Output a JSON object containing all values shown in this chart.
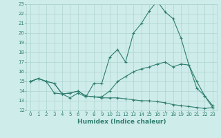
{
  "xlabel": "Humidex (Indice chaleur)",
  "x": [
    0,
    1,
    2,
    3,
    4,
    5,
    6,
    7,
    8,
    9,
    10,
    11,
    12,
    13,
    14,
    15,
    16,
    17,
    18,
    19,
    20,
    21,
    22,
    23
  ],
  "line_max": [
    15.0,
    15.3,
    15.0,
    13.8,
    13.7,
    13.3,
    13.8,
    13.4,
    14.8,
    14.8,
    17.5,
    18.3,
    17.0,
    20.0,
    21.0,
    22.3,
    23.3,
    22.2,
    21.5,
    19.5,
    16.7,
    14.3,
    13.5,
    12.5
  ],
  "line_mean": [
    15.0,
    15.3,
    15.0,
    14.8,
    13.7,
    13.8,
    14.0,
    13.5,
    13.4,
    13.4,
    14.0,
    15.0,
    15.5,
    16.0,
    16.3,
    16.5,
    16.8,
    17.0,
    16.5,
    16.8,
    16.7,
    15.0,
    13.5,
    12.3
  ],
  "line_min": [
    15.0,
    15.3,
    15.0,
    14.8,
    13.7,
    13.8,
    14.0,
    13.5,
    13.4,
    13.3,
    13.3,
    13.3,
    13.2,
    13.1,
    13.0,
    13.0,
    12.9,
    12.8,
    12.6,
    12.5,
    12.4,
    12.3,
    12.2,
    12.3
  ],
  "line_color": "#2e7d6e",
  "bg_color": "#ceecea",
  "grid_color": "#aed4d0",
  "ylim": [
    12,
    23
  ],
  "xlim": [
    -0.5,
    23.5
  ],
  "yticks": [
    12,
    13,
    14,
    15,
    16,
    17,
    18,
    19,
    20,
    21,
    22,
    23
  ],
  "xticks": [
    0,
    1,
    2,
    3,
    4,
    5,
    6,
    7,
    8,
    9,
    10,
    11,
    12,
    13,
    14,
    15,
    16,
    17,
    18,
    19,
    20,
    21,
    22,
    23
  ],
  "tick_fontsize": 5.0,
  "xlabel_fontsize": 6.5
}
